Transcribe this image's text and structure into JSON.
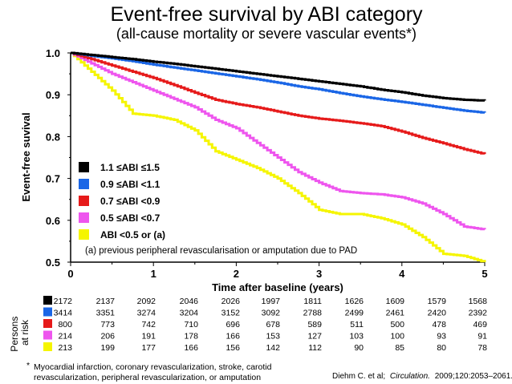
{
  "title": "Event-free survival by ABI category",
  "subtitle": "(all-cause mortality or severe vascular events*)",
  "footnote_star": "*",
  "footnote_line1": "Myocardial infarction, coronary revascularization, stroke, carotid",
  "footnote_line2": "revascularization, peripheral revascularization, or amputation",
  "citation_prefix": "Diehm C. et al;",
  "citation_journal": "Circulation.",
  "citation_suffix": "2009;120:2053–2061.",
  "risk_table": {
    "title_line1": "Persons",
    "title_line2": "at risk",
    "columns": [
      "0",
      "0.5",
      "1",
      "1.5",
      "2",
      "2.5",
      "3",
      "3.5",
      "4",
      "4.5",
      "5"
    ],
    "rows": [
      {
        "color": "#000000",
        "values": [
          "2172",
          "2137",
          "2092",
          "2046",
          "2026",
          "1997",
          "1811",
          "1626",
          "1609",
          "1579",
          "1568"
        ]
      },
      {
        "color": "#1a66e6",
        "values": [
          "3414",
          "3351",
          "3274",
          "3204",
          "3152",
          "3092",
          "2788",
          "2499",
          "2461",
          "2420",
          "2392"
        ]
      },
      {
        "color": "#e61a1a",
        "values": [
          "800",
          "773",
          "742",
          "710",
          "696",
          "678",
          "589",
          "511",
          "500",
          "478",
          "469"
        ]
      },
      {
        "color": "#ee55ee",
        "values": [
          "214",
          "206",
          "191",
          "178",
          "166",
          "153",
          "127",
          "103",
          "100",
          "93",
          "91"
        ]
      },
      {
        "color": "#f5f500",
        "values": [
          "213",
          "199",
          "177",
          "166",
          "156",
          "142",
          "112",
          "90",
          "85",
          "80",
          "78"
        ]
      }
    ]
  },
  "chart_data": {
    "type": "line",
    "title": "Event-free survival by ABI category",
    "subtitle": "(all-cause mortality or severe vascular events*)",
    "xlabel": "Time after baseline (years)",
    "ylabel": "Event-free suvival",
    "xlim": [
      0,
      5
    ],
    "ylim": [
      0.5,
      1.0
    ],
    "x_ticks": [
      "0",
      "1",
      "2",
      "3",
      "4",
      "5"
    ],
    "y_ticks": [
      "0.5",
      "0.6",
      "0.7",
      "0.8",
      "0.9",
      "1.0"
    ],
    "legend_position": "left-middle",
    "legend_note": "(a) previous peripheral revascularisation or amputation due to PAD",
    "series": [
      {
        "name": "1.1 ≤ABI ≤1.5",
        "color": "#000000",
        "x": [
          0,
          0.25,
          0.5,
          0.75,
          1,
          1.25,
          1.5,
          1.75,
          2,
          2.25,
          2.5,
          2.75,
          3,
          3.25,
          3.5,
          3.75,
          4,
          4.25,
          4.5,
          4.75,
          5
        ],
        "y": [
          1.0,
          0.995,
          0.99,
          0.985,
          0.979,
          0.974,
          0.968,
          0.962,
          0.956,
          0.95,
          0.944,
          0.938,
          0.932,
          0.926,
          0.92,
          0.912,
          0.906,
          0.898,
          0.892,
          0.888,
          0.886
        ]
      },
      {
        "name": "0.9 ≤ABI <1.1",
        "color": "#1a66e6",
        "x": [
          0,
          0.25,
          0.5,
          0.75,
          1,
          1.25,
          1.5,
          1.75,
          2,
          2.25,
          2.5,
          2.75,
          3,
          3.25,
          3.5,
          3.75,
          4,
          4.25,
          4.5,
          4.75,
          5
        ],
        "y": [
          1.0,
          0.993,
          0.987,
          0.98,
          0.972,
          0.965,
          0.958,
          0.951,
          0.944,
          0.937,
          0.929,
          0.92,
          0.913,
          0.904,
          0.896,
          0.889,
          0.883,
          0.876,
          0.869,
          0.862,
          0.857
        ]
      },
      {
        "name": "0.7 ≤ABI <0.9",
        "color": "#e61a1a",
        "x": [
          0,
          0.25,
          0.5,
          0.75,
          1,
          1.25,
          1.5,
          1.75,
          2,
          2.25,
          2.5,
          2.75,
          3,
          3.25,
          3.5,
          3.75,
          4,
          4.25,
          4.5,
          4.75,
          5
        ],
        "y": [
          1.0,
          0.985,
          0.97,
          0.955,
          0.94,
          0.923,
          0.905,
          0.888,
          0.878,
          0.87,
          0.86,
          0.85,
          0.843,
          0.838,
          0.832,
          0.825,
          0.812,
          0.797,
          0.784,
          0.77,
          0.758
        ]
      },
      {
        "name": "0.5 ≤ABI <0.7",
        "color": "#ee55ee",
        "x": [
          0,
          0.25,
          0.5,
          0.75,
          1,
          1.25,
          1.5,
          1.75,
          2,
          2.25,
          2.5,
          2.75,
          3,
          3.25,
          3.5,
          3.75,
          4,
          4.25,
          4.5,
          4.75,
          5
        ],
        "y": [
          1.0,
          0.975,
          0.95,
          0.93,
          0.91,
          0.89,
          0.87,
          0.84,
          0.82,
          0.785,
          0.75,
          0.715,
          0.69,
          0.67,
          0.665,
          0.662,
          0.655,
          0.64,
          0.615,
          0.585,
          0.578
        ]
      },
      {
        "name": "ABI <0.5 or (a)",
        "color": "#f5f500",
        "x": [
          0,
          0.25,
          0.5,
          0.75,
          1,
          1.25,
          1.5,
          1.75,
          2,
          2.25,
          2.5,
          2.75,
          3,
          3.25,
          3.5,
          3.75,
          4,
          4.25,
          4.5,
          4.75,
          5
        ],
        "y": [
          1.0,
          0.955,
          0.91,
          0.855,
          0.85,
          0.84,
          0.815,
          0.765,
          0.745,
          0.725,
          0.7,
          0.665,
          0.625,
          0.615,
          0.615,
          0.605,
          0.59,
          0.56,
          0.52,
          0.515,
          0.5
        ]
      }
    ]
  }
}
